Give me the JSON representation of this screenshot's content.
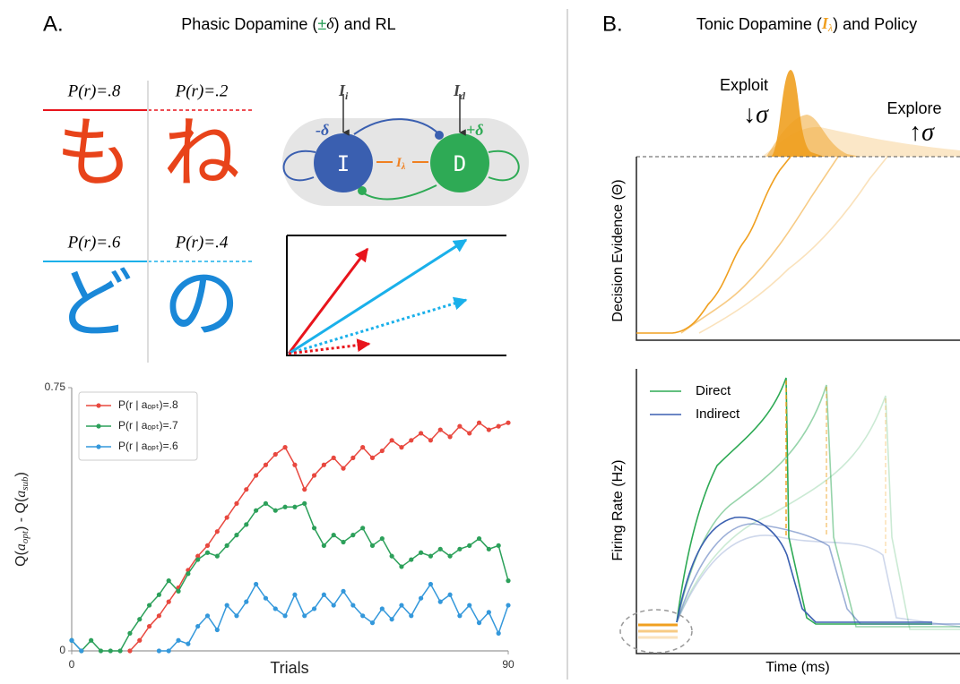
{
  "panel_a": {
    "label": "A.",
    "title": [
      "Phasic Dopamine (",
      "±",
      "δ",
      ") and RL"
    ],
    "task": {
      "probabilities": [
        "P(r)=.8",
        "P(r)=.2",
        "P(r)=.6",
        "P(r)=.4"
      ],
      "symbols": [
        "も",
        "ね",
        "ど",
        "の"
      ]
    },
    "circuit": {
      "nodes": [
        "I",
        "D"
      ],
      "minus_delta": "-δ",
      "plus_delta": "+δ",
      "input_i": [
        "I",
        "i"
      ],
      "input_d": [
        "I",
        "d"
      ],
      "lambda": [
        "I",
        "λ"
      ]
    }
  },
  "panel_b": {
    "label": "B.",
    "title": [
      "Tonic Dopamine (",
      "I",
      "λ",
      ") and Policy"
    ],
    "exploit": "Exploit",
    "exploit_sigma": "↓σ",
    "explore": "Explore",
    "explore_sigma": "↑σ",
    "top_ylabel": "Decision Evidence (Θ)",
    "bottom_ylabel": "Firing Rate (Hz)",
    "legend": [
      "Direct",
      "Indirect"
    ],
    "xlabel": "Time (ms)"
  },
  "chart_data": {
    "type": "line",
    "xlabel": "Trials",
    "ylabel": [
      "Q(",
      "a",
      "opt",
      ") - Q(",
      "a",
      "sub",
      ")"
    ],
    "x": [
      0,
      2,
      4,
      6,
      8,
      10,
      12,
      14,
      16,
      18,
      20,
      22,
      24,
      26,
      28,
      30,
      32,
      34,
      36,
      38,
      40,
      42,
      44,
      46,
      48,
      50,
      52,
      54,
      56,
      58,
      60,
      62,
      64,
      66,
      68,
      70,
      72,
      74,
      76,
      78,
      80,
      82,
      84,
      86,
      88,
      90
    ],
    "xlim": [
      0,
      90
    ],
    "xticks": [
      0,
      90
    ],
    "ylim": [
      0,
      0.75
    ],
    "yticks": [
      0,
      0.75
    ],
    "legend": "upper left",
    "series": [
      {
        "name": "P(r | aₒₚₜ)=.8",
        "color": "#e8483f",
        "values": [
          null,
          null,
          null,
          null,
          null,
          null,
          0,
          0.03,
          0.07,
          0.1,
          0.14,
          0.18,
          0.23,
          0.27,
          0.3,
          0.34,
          0.38,
          0.42,
          0.46,
          0.5,
          0.53,
          0.56,
          0.58,
          0.53,
          0.46,
          0.5,
          0.53,
          0.55,
          0.52,
          0.55,
          0.58,
          0.55,
          0.57,
          0.6,
          0.58,
          0.6,
          0.62,
          0.6,
          0.63,
          0.61,
          0.64,
          0.62,
          0.65,
          0.63,
          0.64,
          0.65
        ]
      },
      {
        "name": "P(r | aₒₚₜ)=.7",
        "color": "#2ca05a",
        "values": [
          0.03,
          0,
          0.03,
          0,
          0,
          0,
          0.05,
          0.09,
          0.13,
          0.16,
          0.2,
          0.17,
          0.22,
          0.26,
          0.28,
          0.27,
          0.3,
          0.33,
          0.36,
          0.4,
          0.42,
          0.4,
          0.41,
          0.41,
          0.42,
          0.35,
          0.3,
          0.33,
          0.31,
          0.33,
          0.35,
          0.3,
          0.32,
          0.27,
          0.24,
          0.26,
          0.28,
          0.27,
          0.29,
          0.27,
          0.29,
          0.3,
          0.32,
          0.29,
          0.3,
          0.2
        ]
      },
      {
        "name": "P(r | aₒₚₜ)=.6",
        "color": "#3498db",
        "values": [
          0.03,
          0,
          null,
          null,
          null,
          null,
          null,
          null,
          null,
          0,
          0,
          0.03,
          0.02,
          0.07,
          0.1,
          0.06,
          0.13,
          0.1,
          0.14,
          0.19,
          0.15,
          0.12,
          0.1,
          0.16,
          0.1,
          0.12,
          0.16,
          0.13,
          0.17,
          0.13,
          0.1,
          0.08,
          0.12,
          0.09,
          0.13,
          0.1,
          0.15,
          0.19,
          0.14,
          0.16,
          0.1,
          0.13,
          0.08,
          0.11,
          0.05,
          0.13
        ]
      }
    ]
  }
}
